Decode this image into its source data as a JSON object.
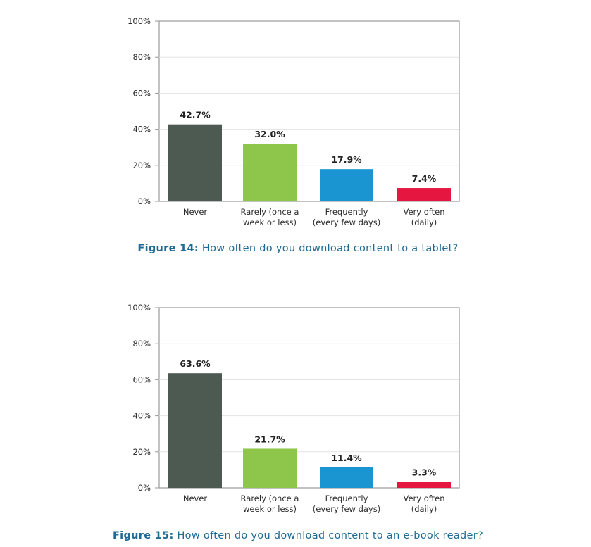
{
  "chart_data": [
    {
      "type": "bar",
      "categories": [
        [
          "Never"
        ],
        [
          "Rarely (once a",
          "week or less)"
        ],
        [
          "Frequently",
          "(every few days)"
        ],
        [
          "Very often",
          "(daily)"
        ]
      ],
      "values": [
        42.7,
        32.0,
        17.9,
        7.4
      ],
      "value_labels": [
        "42.7%",
        "32.0%",
        "17.9%",
        "7.4%"
      ],
      "ylim": [
        0,
        100
      ],
      "yticks": [
        "0%",
        "20%",
        "40%",
        "60%",
        "80%",
        "100%"
      ],
      "grid": true,
      "colors": [
        "#4d5a52",
        "#8dc64b",
        "#1a95d2",
        "#e5163f"
      ],
      "caption_label": "Figure 14:",
      "caption_text": " How often do you download content to a tablet?"
    },
    {
      "type": "bar",
      "categories": [
        [
          "Never"
        ],
        [
          "Rarely (once a",
          "week or less)"
        ],
        [
          "Frequently",
          "(every few days)"
        ],
        [
          "Very often",
          "(daily)"
        ]
      ],
      "values": [
        63.6,
        21.7,
        11.4,
        3.3
      ],
      "value_labels": [
        "63.6%",
        "21.7%",
        "11.4%",
        "3.3%"
      ],
      "ylim": [
        0,
        100
      ],
      "yticks": [
        "0%",
        "20%",
        "40%",
        "60%",
        "80%",
        "100%"
      ],
      "grid": true,
      "colors": [
        "#4d5a52",
        "#8dc64b",
        "#1a95d2",
        "#e5163f"
      ],
      "caption_label": "Figure 15:",
      "caption_text": " How often do you download content to an e-book reader?"
    }
  ]
}
